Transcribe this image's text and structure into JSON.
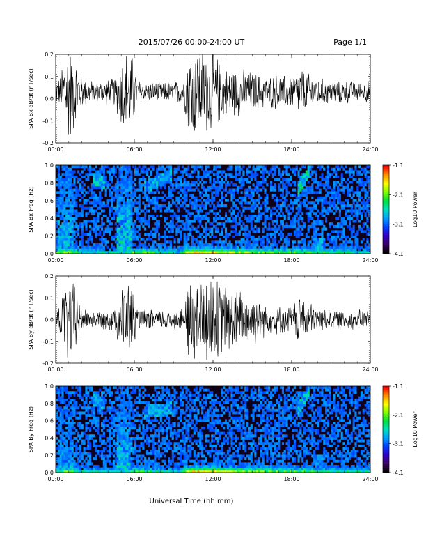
{
  "header": {
    "title": "2015/07/26  00:00-24:00 UT",
    "page": "Page 1/1"
  },
  "footer": {
    "xlabel": "Universal Time (hh:mm)"
  },
  "colors": {
    "trace": "#000000",
    "spectrogram_background": "#100018",
    "colormap": [
      "#000000",
      "#3c0064",
      "#3200c8",
      "#0040ff",
      "#00a0ff",
      "#00e0c0",
      "#00e040",
      "#80ff00",
      "#ffff00",
      "#ff9000",
      "#ff0000"
    ]
  },
  "chart_data": [
    {
      "type": "line",
      "ylabel": "SPA Bx dB/dt (nT/sec)",
      "xlim": [
        "00:00",
        "24:00"
      ],
      "ylim": [
        -0.2,
        0.2
      ],
      "x_ticks": [
        "00:00",
        "06:00",
        "12:00",
        "18:00",
        "24:00"
      ],
      "y_ticks": [
        "-0.2",
        "-0.1",
        "0.0",
        "0.1",
        "0.2"
      ],
      "baseline": 0.03,
      "amplitude_envelope": {
        "x_hours": [
          0,
          0.4,
          0.6,
          1.0,
          1.4,
          2.0,
          3.0,
          4.5,
          5.2,
          5.8,
          6.2,
          7.0,
          8.0,
          9.0,
          9.8,
          10.2,
          11.0,
          12.0,
          13.0,
          14.0,
          15.0,
          16.0,
          17.0,
          18.0,
          18.6,
          19.0,
          20.0,
          21.0,
          22.0,
          23.0,
          24.0
        ],
        "half_range": [
          0.06,
          0.08,
          0.22,
          0.25,
          0.2,
          0.08,
          0.05,
          0.07,
          0.22,
          0.2,
          0.07,
          0.05,
          0.05,
          0.05,
          0.07,
          0.24,
          0.22,
          0.2,
          0.12,
          0.12,
          0.1,
          0.08,
          0.09,
          0.08,
          0.13,
          0.1,
          0.07,
          0.06,
          0.06,
          0.05,
          0.06
        ]
      }
    },
    {
      "type": "heatmap",
      "ylabel": "SPA Bx Freq (Hz)",
      "xlim": [
        "00:00",
        "24:00"
      ],
      "ylim": [
        0.0,
        1.0
      ],
      "x_ticks": [
        "00:00",
        "06:00",
        "12:00",
        "18:00",
        "24:00"
      ],
      "y_ticks": [
        "0.0",
        "0.2",
        "0.4",
        "0.6",
        "0.8",
        "1.0"
      ],
      "colorbar": {
        "label": "Log10 Power",
        "ticks": [
          "-1.1",
          "-2.1",
          "-3.1",
          "-4.1"
        ],
        "range": [
          -4.1,
          -1.1
        ]
      },
      "features": [
        {
          "kind": "lowband",
          "x_hours": [
            0,
            1,
            2,
            5,
            6,
            9.5,
            10,
            11,
            12,
            14,
            16,
            18,
            20,
            22,
            24
          ],
          "level": [
            0.6,
            0.75,
            0.5,
            0.5,
            0.7,
            0.45,
            0.85,
            0.9,
            0.85,
            0.75,
            0.7,
            0.65,
            0.6,
            0.55,
            0.5
          ]
        },
        {
          "kind": "column",
          "x_start": 0.1,
          "x_end": 1.3,
          "level": 0.55
        },
        {
          "kind": "column",
          "x_start": 4.6,
          "x_end": 5.9,
          "level": 0.6
        },
        {
          "kind": "column",
          "x_start": 9.7,
          "x_end": 10.1,
          "level": 0.45
        },
        {
          "kind": "band",
          "x_start": 2.8,
          "x_end": 3.8,
          "f_start": 0.85,
          "f_end": 0.8,
          "level": 0.55
        },
        {
          "kind": "band",
          "x_start": 6.8,
          "x_end": 8.8,
          "f_start": 0.75,
          "f_end": 0.9,
          "level": 0.5
        },
        {
          "kind": "band",
          "x_start": 18.4,
          "x_end": 19.4,
          "f_start": 0.7,
          "f_end": 0.95,
          "level": 0.6
        },
        {
          "kind": "band",
          "x_start": 19.6,
          "x_end": 20.4,
          "f_start": 0.12,
          "f_end": 0.12,
          "level": 0.5
        }
      ]
    },
    {
      "type": "line",
      "ylabel": "SPA By dB/dt (nT/sec)",
      "xlim": [
        "00:00",
        "24:00"
      ],
      "ylim": [
        -0.2,
        0.2
      ],
      "x_ticks": [
        "00:00",
        "06:00",
        "12:00",
        "18:00",
        "24:00"
      ],
      "y_ticks": [
        "-0.2",
        "-0.1",
        "0.0",
        "0.1",
        "0.2"
      ],
      "baseline": 0.0,
      "amplitude_envelope": {
        "x_hours": [
          0,
          0.4,
          0.8,
          1.2,
          1.6,
          2.0,
          3.0,
          4.5,
          5.2,
          5.8,
          6.2,
          7.0,
          8.0,
          9.0,
          9.8,
          10.2,
          11.0,
          12.0,
          13.0,
          14.0,
          15.0,
          16.0,
          17.0,
          18.0,
          18.6,
          19.0,
          20.0,
          21.0,
          22.0,
          23.0,
          24.0
        ],
        "half_range": [
          0.04,
          0.1,
          0.2,
          0.22,
          0.15,
          0.06,
          0.04,
          0.06,
          0.2,
          0.18,
          0.06,
          0.05,
          0.05,
          0.05,
          0.06,
          0.24,
          0.22,
          0.22,
          0.17,
          0.15,
          0.14,
          0.08,
          0.07,
          0.07,
          0.13,
          0.1,
          0.06,
          0.05,
          0.05,
          0.05,
          0.05
        ]
      }
    },
    {
      "type": "heatmap",
      "ylabel": "SPA By Freq (Hz)",
      "xlim": [
        "00:00",
        "24:00"
      ],
      "ylim": [
        0.0,
        1.0
      ],
      "x_ticks": [
        "00:00",
        "06:00",
        "12:00",
        "18:00",
        "24:00"
      ],
      "y_ticks": [
        "0.0",
        "0.2",
        "0.4",
        "0.6",
        "0.8",
        "1.0"
      ],
      "colorbar": {
        "label": "Log10 Power",
        "ticks": [
          "-1.1",
          "-2.1",
          "-3.1",
          "-4.1"
        ],
        "range": [
          -4.1,
          -1.1
        ]
      },
      "features": [
        {
          "kind": "lowband",
          "x_hours": [
            0,
            1,
            2,
            5,
            6,
            9.5,
            10,
            11,
            12,
            14,
            16,
            18,
            20,
            22,
            24
          ],
          "level": [
            0.55,
            0.7,
            0.5,
            0.5,
            0.65,
            0.45,
            0.85,
            0.9,
            0.85,
            0.75,
            0.7,
            0.65,
            0.6,
            0.55,
            0.5
          ]
        },
        {
          "kind": "column",
          "x_start": 0.1,
          "x_end": 1.3,
          "level": 0.5
        },
        {
          "kind": "column",
          "x_start": 4.6,
          "x_end": 5.9,
          "level": 0.55
        },
        {
          "kind": "column",
          "x_start": 9.7,
          "x_end": 10.1,
          "level": 0.45
        },
        {
          "kind": "band",
          "x_start": 2.8,
          "x_end": 3.8,
          "f_start": 0.85,
          "f_end": 0.8,
          "level": 0.5
        },
        {
          "kind": "band",
          "x_start": 6.8,
          "x_end": 8.8,
          "f_start": 0.7,
          "f_end": 0.75,
          "level": 0.5
        },
        {
          "kind": "band",
          "x_start": 18.4,
          "x_end": 19.4,
          "f_start": 0.7,
          "f_end": 0.95,
          "level": 0.55
        },
        {
          "kind": "band",
          "x_start": 19.6,
          "x_end": 20.4,
          "f_start": 0.15,
          "f_end": 0.15,
          "level": 0.45
        }
      ]
    }
  ]
}
